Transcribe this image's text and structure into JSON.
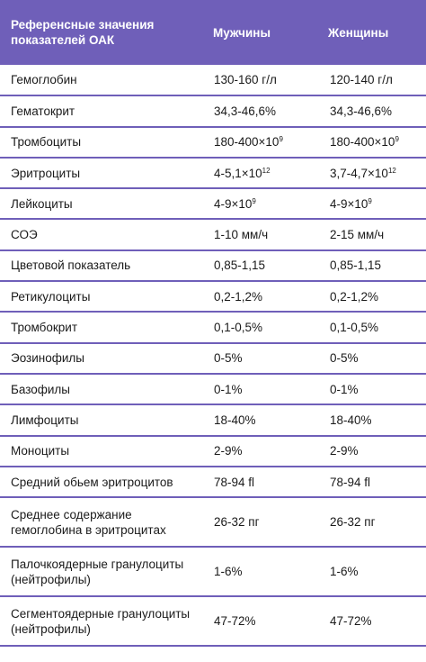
{
  "header": {
    "col1": "Референсные значения показателей ОАК",
    "col2": "Мужчины",
    "col3": "Женщины"
  },
  "rows": [
    {
      "name": "Гемоглобин",
      "men": "130-160 г/л",
      "women": "120-140 г/л"
    },
    {
      "name": "Гематокрит",
      "men": "34,3-46,6%",
      "women": "34,3-46,6%"
    },
    {
      "name": "Тромбоциты",
      "men": "180-400×10",
      "men_exp": "9",
      "women": "180-400×10",
      "women_exp": "9"
    },
    {
      "name": "Эритроциты",
      "men": "4-5,1×10",
      "men_exp": "12",
      "women": "3,7-4,7×10",
      "women_exp": "12"
    },
    {
      "name": "Лейкоциты",
      "men": "4-9×10",
      "men_exp": "9",
      "women": "4-9×10",
      "women_exp": "9"
    },
    {
      "name": "СОЭ",
      "men": "1-10 мм/ч",
      "women": "2-15 мм/ч"
    },
    {
      "name": "Цветовой показатель",
      "men": "0,85-1,15",
      "women": "0,85-1,15"
    },
    {
      "name": "Ретикулоциты",
      "men": "0,2-1,2%",
      "women": "0,2-1,2%"
    },
    {
      "name": "Тромбокрит",
      "men": "0,1-0,5%",
      "women": "0,1-0,5%"
    },
    {
      "name": "Эозинофилы",
      "men": "0-5%",
      "women": "0-5%"
    },
    {
      "name": "Базофилы",
      "men": "0-1%",
      "women": "0-1%"
    },
    {
      "name": "Лимфоциты",
      "men": "18-40%",
      "women": "18-40%"
    },
    {
      "name": "Моноциты",
      "men": "2-9%",
      "women": "2-9%"
    },
    {
      "name": "Средний обьем эритроцитов",
      "men": "78-94 fl",
      "women": "78-94 fl"
    },
    {
      "name": "Среднее содержание гемоглобина в эритроцитах",
      "men": "26-32 пг",
      "women": "26-32 пг"
    },
    {
      "name": "Палочкоядерные гранулоциты (нейтрофилы)",
      "men": "1-6%",
      "women": "1-6%"
    },
    {
      "name": "Сегментоядерные гранулоциты (нейтрофилы)",
      "men": "47-72%",
      "women": "47-72%"
    }
  ],
  "colors": {
    "header_bg": "#6f5fb9",
    "row_border": "#6f5fb9",
    "header_text": "#ffffff"
  }
}
